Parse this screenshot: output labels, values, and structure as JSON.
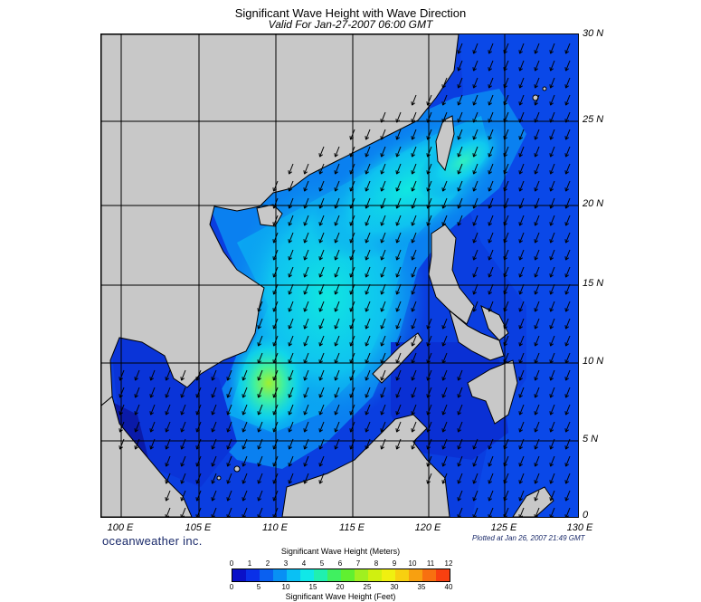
{
  "title": "Significant Wave Height with Wave Direction",
  "subtitle": "Valid For Jan-27-2007 06:00 GMT",
  "lat_labels": [
    "30 N",
    "25 N",
    "20 N",
    "15 N",
    "10 N",
    "5 N",
    "0"
  ],
  "lon_labels": [
    "100 E",
    "105 E",
    "110 E",
    "115 E",
    "120 E",
    "125 E",
    "130 E"
  ],
  "brand": "oceanweather inc.",
  "plotted": "Plotted at Jan 26, 2007 21:49 GMT",
  "legend": {
    "meters_title": "Significant Wave Height (Meters)",
    "feet_title": "Significant Wave Height (Feet)",
    "meters_ticks": [
      "0",
      "1",
      "2",
      "3",
      "4",
      "5",
      "6",
      "7",
      "8",
      "9",
      "10",
      "11",
      "12"
    ],
    "feet_ticks": [
      "0",
      "5",
      "10",
      "15",
      "20",
      "25",
      "30",
      "35",
      "40"
    ],
    "colors": [
      "#0a10c8",
      "#0a30e8",
      "#0a60f0",
      "#0890f4",
      "#0ac0f4",
      "#10e8e8",
      "#20f0b0",
      "#40f060",
      "#60f030",
      "#a0f020",
      "#d0f010",
      "#f0f010",
      "#f8d010",
      "#f8a010",
      "#f87010",
      "#f84010"
    ]
  },
  "map": {
    "land_color": "#c8c8c8",
    "grid_color": "#000000",
    "wave_direction": "toward south-southwest"
  }
}
